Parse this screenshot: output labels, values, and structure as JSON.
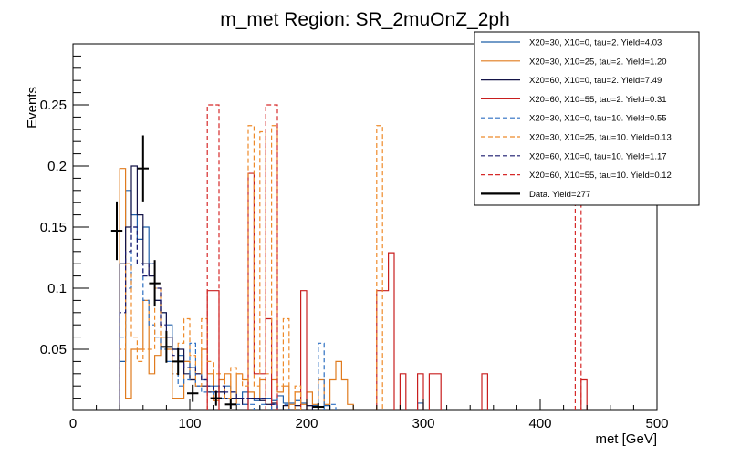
{
  "chart_data": {
    "type": "histogram",
    "title": "m_met Region: SR_2muOnZ_2ph",
    "xlabel": "met [GeV]",
    "ylabel": "Events",
    "xlim": [
      0,
      500
    ],
    "ylim": [
      0,
      0.3
    ],
    "bin_width": 5,
    "x_ticks": [
      0,
      100,
      200,
      300,
      400,
      500
    ],
    "y_ticks": [
      0.05,
      0.1,
      0.15,
      0.2,
      0.25
    ],
    "x_tick_labels": [
      "0",
      "100",
      "200",
      "300",
      "400",
      "500"
    ],
    "y_tick_labels": [
      "0.05",
      "0.1",
      "0.15",
      "0.2",
      "0.25"
    ],
    "grid": false,
    "legend_position": "top-right",
    "series": [
      {
        "name": "X20=30, X10=0, tau=2. Yield=4.03",
        "color": "#1f5fa8",
        "style": "solid",
        "bins": [
          [
            40,
            0.04
          ],
          [
            45,
            0.18
          ],
          [
            50,
            0.16
          ],
          [
            55,
            0.14
          ],
          [
            60,
            0.15
          ],
          [
            65,
            0.12
          ],
          [
            70,
            0.09
          ],
          [
            75,
            0.08
          ],
          [
            80,
            0.07
          ],
          [
            85,
            0.05
          ],
          [
            90,
            0.045
          ],
          [
            95,
            0.04
          ],
          [
            100,
            0.035
          ],
          [
            105,
            0.03
          ],
          [
            110,
            0.025
          ],
          [
            115,
            0.02
          ],
          [
            120,
            0.02
          ],
          [
            125,
            0.015
          ],
          [
            130,
            0.02
          ],
          [
            135,
            0.015
          ],
          [
            140,
            0.01
          ],
          [
            145,
            0.015
          ],
          [
            150,
            0.01
          ],
          [
            155,
            0.008
          ],
          [
            160,
            0.01
          ],
          [
            165,
            0.01
          ],
          [
            170,
            0.008
          ],
          [
            175,
            0.012
          ],
          [
            180,
            0.006
          ],
          [
            185,
            0.006
          ],
          [
            190,
            0.008
          ],
          [
            195,
            0.006
          ],
          [
            200,
            0.004
          ],
          [
            205,
            0.004
          ],
          [
            215,
            0.004
          ],
          [
            295,
            0.006
          ]
        ]
      },
      {
        "name": "X20=30, X10=25, tau=2. Yield=1.20",
        "color": "#e07b1e",
        "style": "solid",
        "bins": [
          [
            40,
            0.198
          ],
          [
            45,
            0.01
          ],
          [
            50,
            0.05
          ],
          [
            55,
            0.05
          ],
          [
            60,
            0.09
          ],
          [
            65,
            0.03
          ],
          [
            70,
            0.045
          ],
          [
            75,
            0.06
          ],
          [
            80,
            0.05
          ],
          [
            85,
            0.01
          ],
          [
            90,
            0.01
          ],
          [
            95,
            0.04
          ],
          [
            100,
            0.025
          ],
          [
            105,
            0.03
          ],
          [
            110,
            0.05
          ],
          [
            115,
            0.03
          ],
          [
            120,
            0.008
          ],
          [
            125,
            0.025
          ],
          [
            130,
            0.03
          ],
          [
            135,
            0.005
          ],
          [
            140,
            0.03
          ],
          [
            145,
            0.025
          ],
          [
            150,
            0.015
          ],
          [
            155,
            0.01
          ],
          [
            160,
            0.025
          ],
          [
            165,
            0.005
          ],
          [
            170,
            0.025
          ],
          [
            175,
            0.015
          ],
          [
            180,
            0.02
          ],
          [
            185,
            0.005
          ],
          [
            190,
            0.015
          ],
          [
            195,
            0.005
          ],
          [
            200,
            0.015
          ],
          [
            205,
            0.005
          ],
          [
            210,
            0.025
          ],
          [
            215,
            0.005
          ],
          [
            220,
            0.025
          ],
          [
            225,
            0.04
          ],
          [
            230,
            0.025
          ],
          [
            235,
            0.005
          ]
        ]
      },
      {
        "name": "X20=60, X10=0, tau=2. Yield=7.49",
        "color": "#141448",
        "style": "solid",
        "bins": [
          [
            40,
            0.12
          ],
          [
            45,
            0.15
          ],
          [
            50,
            0.2
          ],
          [
            55,
            0.16
          ],
          [
            60,
            0.12
          ],
          [
            65,
            0.11
          ],
          [
            70,
            0.09
          ],
          [
            75,
            0.08
          ],
          [
            80,
            0.06
          ],
          [
            85,
            0.05
          ],
          [
            90,
            0.05
          ],
          [
            95,
            0.03
          ],
          [
            100,
            0.025
          ],
          [
            105,
            0.02
          ],
          [
            110,
            0.02
          ],
          [
            115,
            0.015
          ],
          [
            120,
            0.015
          ],
          [
            125,
            0.015
          ],
          [
            130,
            0.01
          ],
          [
            135,
            0.01
          ],
          [
            140,
            0.01
          ],
          [
            145,
            0.005
          ],
          [
            150,
            0.01
          ],
          [
            155,
            0.01
          ],
          [
            160,
            0.008
          ],
          [
            165,
            0.005
          ],
          [
            170,
            0.006
          ],
          [
            180,
            0.004
          ],
          [
            190,
            0.004
          ],
          [
            200,
            0.004
          ]
        ]
      },
      {
        "name": "X20=60, X10=55, tau=2. Yield=0.31",
        "color": "#c81e1e",
        "style": "solid",
        "bins": [
          [
            115,
            0.098
          ],
          [
            120,
            0.098
          ],
          [
            150,
            0.194
          ],
          [
            155,
            0.03
          ],
          [
            160,
            0.03
          ],
          [
            165,
            0.075
          ],
          [
            195,
            0.098
          ],
          [
            260,
            0.098
          ],
          [
            265,
            0.098
          ],
          [
            270,
            0.129
          ],
          [
            280,
            0.03
          ],
          [
            295,
            0.03
          ],
          [
            305,
            0.03
          ],
          [
            310,
            0.03
          ],
          [
            350,
            0.03
          ],
          [
            435,
            0.025
          ]
        ]
      },
      {
        "name": "X20=30, X10=0, tau=10. Yield=0.55",
        "color": "#2d6fc2",
        "style": "dashed",
        "bins": [
          [
            40,
            0.06
          ],
          [
            45,
            0.1
          ],
          [
            50,
            0.15
          ],
          [
            55,
            0.12
          ],
          [
            60,
            0.09
          ],
          [
            65,
            0.07
          ],
          [
            70,
            0.06
          ],
          [
            75,
            0.05
          ],
          [
            80,
            0.04
          ],
          [
            85,
            0.03
          ],
          [
            90,
            0.02
          ],
          [
            95,
            0.025
          ],
          [
            100,
            0.055
          ],
          [
            105,
            0.02
          ],
          [
            110,
            0.015
          ],
          [
            115,
            0.015
          ],
          [
            120,
            0.01
          ],
          [
            125,
            0.01
          ],
          [
            130,
            0.01
          ],
          [
            135,
            0.005
          ],
          [
            140,
            0.005
          ],
          [
            145,
            0.005
          ],
          [
            150,
            0.005
          ],
          [
            160,
            0.005
          ],
          [
            170,
            0.005
          ],
          [
            180,
            0.005
          ],
          [
            210,
            0.055
          ],
          [
            220,
            0.005
          ]
        ]
      },
      {
        "name": "X20=30, X10=25, tau=10. Yield=0.13",
        "color": "#ee8a2a",
        "style": "dashed",
        "bins": [
          [
            40,
            0.05
          ],
          [
            45,
            0.12
          ],
          [
            50,
            0.06
          ],
          [
            55,
            0.04
          ],
          [
            60,
            0.05
          ],
          [
            65,
            0.05
          ],
          [
            70,
            0.1
          ],
          [
            75,
            0.06
          ],
          [
            80,
            0.05
          ],
          [
            85,
            0.03
          ],
          [
            90,
            0.055
          ],
          [
            95,
            0.075
          ],
          [
            100,
            0.045
          ],
          [
            105,
            0.02
          ],
          [
            110,
            0.075
          ],
          [
            115,
            0.04
          ],
          [
            120,
            0.03
          ],
          [
            125,
            0.03
          ],
          [
            130,
            0.01
          ],
          [
            135,
            0.035
          ],
          [
            140,
            0.03
          ],
          [
            145,
            0.02
          ],
          [
            150,
            0.233
          ],
          [
            155,
            0.02
          ],
          [
            160,
            0.228
          ],
          [
            165,
            0.03
          ],
          [
            170,
            0.233
          ],
          [
            175,
            0.02
          ],
          [
            180,
            0.075
          ],
          [
            190,
            0.02
          ],
          [
            260,
            0.233
          ]
        ]
      },
      {
        "name": "X20=60, X10=0, tau=10. Yield=1.17",
        "color": "#1a1a6e",
        "style": "dashed",
        "bins": [
          [
            40,
            0.08
          ],
          [
            45,
            0.13
          ],
          [
            50,
            0.15
          ],
          [
            55,
            0.12
          ],
          [
            60,
            0.11
          ],
          [
            65,
            0.12
          ],
          [
            70,
            0.1
          ],
          [
            75,
            0.07
          ],
          [
            80,
            0.06
          ],
          [
            85,
            0.045
          ],
          [
            90,
            0.04
          ],
          [
            95,
            0.035
          ],
          [
            100,
            0.035
          ],
          [
            105,
            0.03
          ],
          [
            110,
            0.025
          ],
          [
            115,
            0.02
          ],
          [
            120,
            0.015
          ],
          [
            125,
            0.02
          ],
          [
            130,
            0.015
          ],
          [
            135,
            0.015
          ],
          [
            140,
            0.01
          ],
          [
            145,
            0.01
          ],
          [
            150,
            0.01
          ],
          [
            155,
            0.01
          ],
          [
            160,
            0.01
          ],
          [
            165,
            0.005
          ],
          [
            170,
            0.005
          ]
        ]
      },
      {
        "name": "X20=60, X10=55, tau=10. Yield=0.12",
        "color": "#d62a2a",
        "style": "dashed",
        "bins": [
          [
            115,
            0.25
          ],
          [
            120,
            0.25
          ],
          [
            165,
            0.25
          ],
          [
            170,
            0.25
          ],
          [
            430,
            0.175
          ]
        ]
      }
    ],
    "data_series": {
      "name": "Data. Yield=277",
      "color": "#000000",
      "points": [
        {
          "x": 37.5,
          "y": 0.147,
          "err": 0.024
        },
        {
          "x": 60,
          "y": 0.198,
          "err": 0.027
        },
        {
          "x": 70,
          "y": 0.104,
          "err": 0.019
        },
        {
          "x": 80,
          "y": 0.052,
          "err": 0.013
        },
        {
          "x": 90,
          "y": 0.04,
          "err": 0.011
        },
        {
          "x": 102.5,
          "y": 0.014,
          "err": 0.007
        },
        {
          "x": 122.5,
          "y": 0.01,
          "err": 0.006
        },
        {
          "x": 135,
          "y": 0.005,
          "err": 0.004
        },
        {
          "x": 210,
          "y": 0.003,
          "err": 0.003
        }
      ]
    }
  }
}
